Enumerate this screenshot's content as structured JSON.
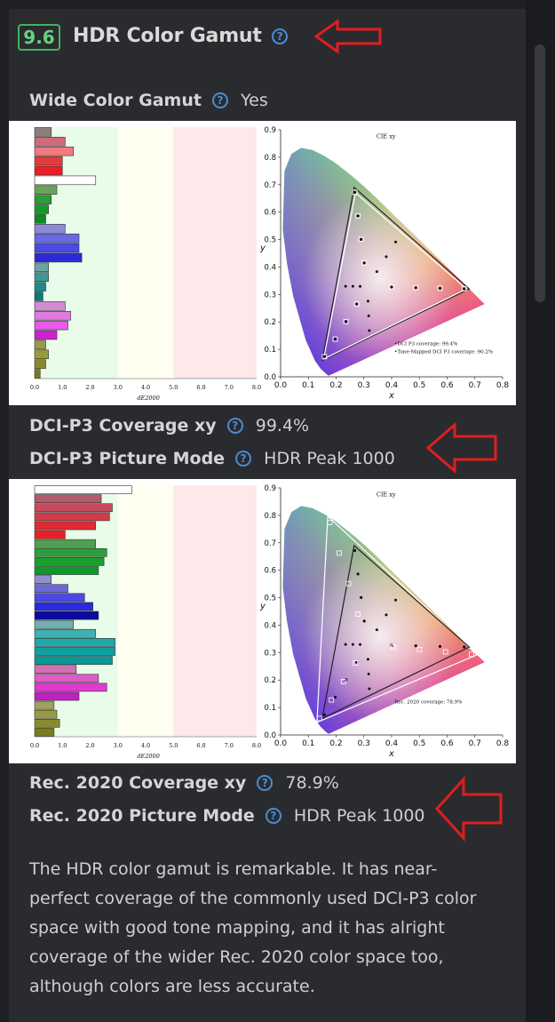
{
  "section": {
    "score": "9.6",
    "title": "HDR Color Gamut"
  },
  "rows": [
    {
      "label": "Wide Color Gamut",
      "value": "Yes"
    },
    {
      "label": "DCI-P3 Coverage xy",
      "value": "99.4%"
    },
    {
      "label": "DCI-P3 Picture Mode",
      "value": "HDR Peak 1000"
    },
    {
      "label": "Rec. 2020 Coverage xy",
      "value": "78.9%"
    },
    {
      "label": "Rec. 2020 Picture Mode",
      "value": "HDR Peak 1000"
    }
  ],
  "charts": {
    "p3": {
      "left": {
        "xlabel": "dE2000",
        "xticks": [
          "0.0",
          "1.0",
          "2.0",
          "3.0",
          "4.0",
          "5.0",
          "6.0",
          "7.0",
          "8.0"
        ],
        "bars": [
          0.6,
          1.1,
          1.4,
          1.0,
          1.0,
          2.2,
          0.8,
          0.6,
          0.5,
          0.4,
          1.1,
          1.6,
          1.6,
          1.7,
          0.5,
          0.5,
          0.4,
          0.3,
          1.1,
          1.3,
          1.2,
          0.8,
          0.4,
          0.5,
          0.4,
          0.2
        ],
        "colors": [
          "#8a7e7e",
          "#d06a7c",
          "#f07a80",
          "#e43a3a",
          "#ee1d25",
          "#ffffff",
          "#68a45c",
          "#2e9a3a",
          "#159a2a",
          "#0e8a24",
          "#8a8ad8",
          "#6a6ae0",
          "#4a4ae8",
          "#2a2ad8",
          "#6aa4a4",
          "#3a9a9a",
          "#1a8a8a",
          "#0a7a7a",
          "#d48ad4",
          "#e07ae0",
          "#e85ae8",
          "#d020d0",
          "#9a9a4a",
          "#9a9a3a",
          "#8a8a2a",
          "#7a7a1a"
        ]
      },
      "right": {
        "title": "CIE xy",
        "ylabel": "y",
        "xlabel": "x",
        "yticks": [
          "0.0",
          "0.1",
          "0.2",
          "0.3",
          "0.4",
          "0.5",
          "0.6",
          "0.7",
          "0.8",
          "0.9"
        ],
        "xticks": [
          "0.0",
          "0.1",
          "0.2",
          "0.3",
          "0.4",
          "0.5",
          "0.6",
          "0.7",
          "0.8"
        ],
        "legend": [
          "•DCI P3 coverage: 99.4%",
          "•Tone-Mapped DCI P3 coverage: 90.2%"
        ]
      }
    },
    "rec2020": {
      "left": {
        "xlabel": "dE2000",
        "xticks": [
          "0.0",
          "1.0",
          "2.0",
          "3.0",
          "4.0",
          "5.0",
          "6.0",
          "7.0",
          "8.0"
        ],
        "bars": [
          3.5,
          2.4,
          2.8,
          2.7,
          2.2,
          1.1,
          2.2,
          2.6,
          2.5,
          2.3,
          0.6,
          1.2,
          1.8,
          2.1,
          2.3,
          1.4,
          2.2,
          2.9,
          2.9,
          2.8,
          1.5,
          2.3,
          2.6,
          1.6,
          0.7,
          0.8,
          0.9,
          0.7
        ],
        "colors": [
          "#ffffff",
          "#b45a6a",
          "#c84a60",
          "#d43a4a",
          "#e02a34",
          "#ee1d25",
          "#50a050",
          "#2aa03a",
          "#18a02a",
          "#10982a",
          "#9090d0",
          "#6a6ad8",
          "#4a4ae0",
          "#2a2ae0",
          "#0a0aa0",
          "#70b0b0",
          "#40b0b0",
          "#20a8a8",
          "#10a0a0",
          "#0a9898",
          "#d070b0",
          "#e05ac8",
          "#e03ad0",
          "#c020c0",
          "#a0a060",
          "#9a9a40",
          "#8a8a30",
          "#7a7a20"
        ]
      },
      "right": {
        "title": "CIE xy",
        "ylabel": "y",
        "xlabel": "x",
        "yticks": [
          "0.0",
          "0.1",
          "0.2",
          "0.3",
          "0.4",
          "0.5",
          "0.6",
          "0.7",
          "0.8",
          "0.9"
        ],
        "xticks": [
          "0.0",
          "0.1",
          "0.2",
          "0.3",
          "0.4",
          "0.5",
          "0.6",
          "0.7",
          "0.8"
        ],
        "legend": [
          "Rec. 2020 coverage: 78.9%"
        ]
      }
    }
  },
  "description": "The HDR color gamut is remarkable. It has near-perfect coverage of the commonly used DCI-P3 color space with good tone mapping, and it has alright coverage of the wider Rec. 2020 color space too, although colors are less accurate.",
  "colors": {
    "badge": "#3fb55c",
    "help": "#4b8bd6",
    "arrow": "#e01e1e",
    "background": "#2a2b2f"
  }
}
